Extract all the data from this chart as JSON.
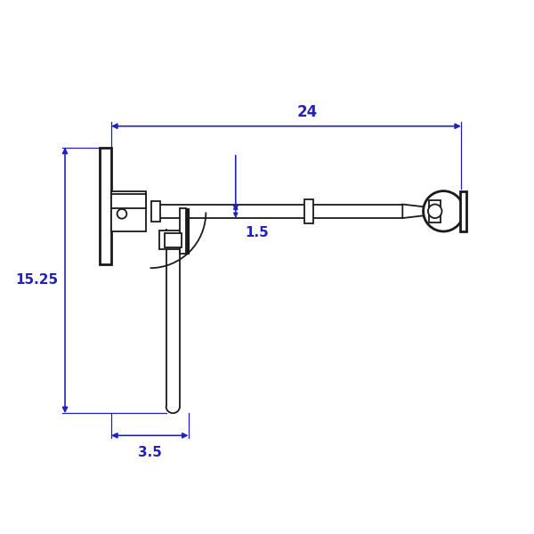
{
  "bg_color": "#ffffff",
  "line_color": "#1a1a1a",
  "dim_color": "#2222bb",
  "fig_width": 6.0,
  "fig_height": 6.0,
  "dim_24_text": "24",
  "dim_15_text": "15.25",
  "dim_35_text": "3.5",
  "dim_15s_text": "1.5",
  "xlim": [
    0,
    10
  ],
  "ylim": [
    0,
    10
  ]
}
